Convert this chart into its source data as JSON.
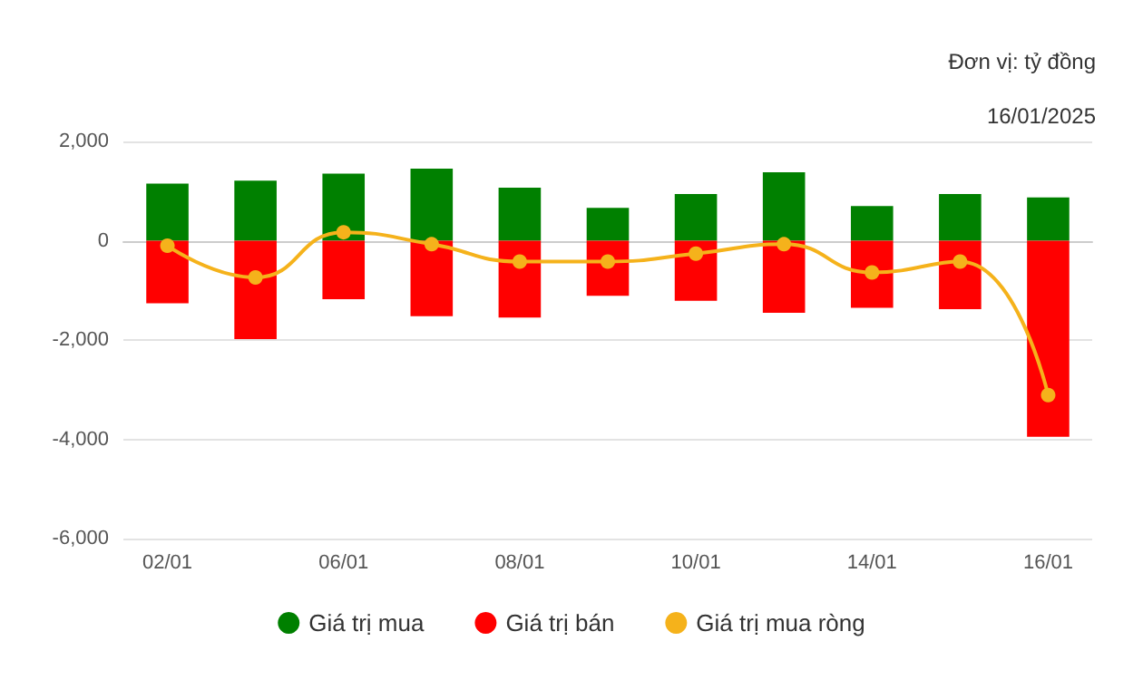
{
  "chart_data": {
    "type": "bar",
    "annotations": [
      "Đơn vị: tỷ đồng",
      "16/01/2025"
    ],
    "categories": [
      "02/01",
      null,
      "06/01",
      null,
      "08/01",
      null,
      "10/01",
      null,
      "14/01",
      null,
      "16/01"
    ],
    "stacked": true,
    "series": [
      {
        "name": "Giá trị mua",
        "color": "#008000",
        "values": [
          1150,
          1210,
          1350,
          1450,
          1070,
          660,
          940,
          1380,
          700,
          940,
          870
        ]
      },
      {
        "name": "Giá trị bán",
        "color": "#ff0000",
        "values": [
          -1260,
          -1980,
          -1180,
          -1520,
          -1550,
          -1110,
          -1210,
          -1450,
          -1350,
          -1380,
          -3950
        ]
      },
      {
        "name": "Giá trị mua ròng",
        "type": "line",
        "color": "#f5b21b",
        "values": [
          -100,
          -740,
          170,
          -70,
          -420,
          -420,
          -260,
          -70,
          -640,
          -420,
          -3110
        ]
      }
    ],
    "ylim": [
      -6000,
      2000
    ],
    "yticks": [
      {
        "value": -6000,
        "label": "-6,000"
      },
      {
        "value": -4000,
        "label": "-4,000"
      },
      {
        "value": -2000,
        "label": "-2,000"
      },
      0,
      {
        "value": 2000,
        "label": "2,000"
      }
    ],
    "grid": "y",
    "legend": "bottom",
    "marker": "circle"
  }
}
